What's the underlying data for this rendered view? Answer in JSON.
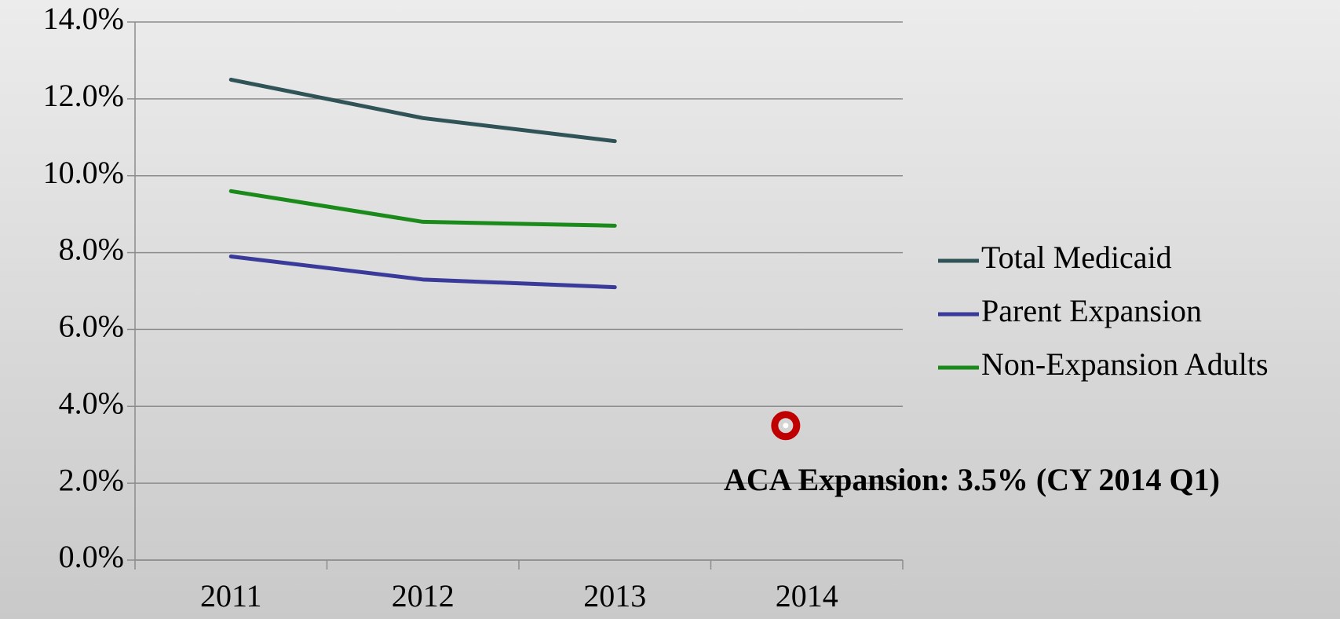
{
  "chart_data": {
    "type": "line",
    "categories": [
      "2011",
      "2012",
      "2013",
      "2014"
    ],
    "series": [
      {
        "name": "Total Medicaid",
        "color": "#2f5357",
        "values": [
          12.5,
          11.5,
          10.9,
          null
        ]
      },
      {
        "name": "Parent Expansion",
        "color": "#3a3a9a",
        "values": [
          7.9,
          7.3,
          7.1,
          null
        ]
      },
      {
        "name": "Non-Expansion Adults",
        "color": "#1a8a1a",
        "values": [
          9.6,
          8.8,
          8.7,
          null
        ]
      }
    ],
    "highlight": {
      "category": "2014",
      "value": 3.5,
      "color": "#c00000"
    },
    "annotation": "ACA Expansion: 3.5% (CY 2014 Q1)",
    "ylim": [
      0,
      14
    ],
    "yticks": [
      {
        "value": 0,
        "label": "0.0%"
      },
      {
        "value": 2,
        "label": "2.0%"
      },
      {
        "value": 4,
        "label": "4.0%"
      },
      {
        "value": 6,
        "label": "6.0%"
      },
      {
        "value": 8,
        "label": "8.0%"
      },
      {
        "value": 10,
        "label": "10.0%"
      },
      {
        "value": 12,
        "label": "12.0%"
      },
      {
        "value": 14,
        "label": "14.0%"
      }
    ],
    "grid": true,
    "legend": "right"
  }
}
